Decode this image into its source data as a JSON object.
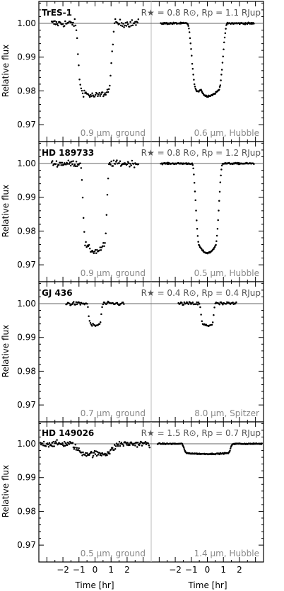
{
  "x_axis_label": "Time [hr]",
  "y_axis_label": "Relative flux",
  "x_tick_labels": [
    "−2",
    "−1",
    "0",
    "1",
    "2"
  ],
  "y_tick_labels": [
    "1.00",
    "0.99",
    "0.98",
    "0.97"
  ],
  "colors": {
    "points": "#000000",
    "baseline": "#666666",
    "divider": "#bbbbbb",
    "caption": "#888888"
  },
  "chart_data": [
    {
      "type": "scatter",
      "planet": "TrES-1",
      "params": "R★ = 0.8 R⊙, Rp = 1.1 RJup",
      "xlim": [
        -3.5,
        3.5
      ],
      "ylim": [
        0.965,
        1.0065
      ],
      "left": {
        "caption": "0.9 μm, ground",
        "depth": 0.0215,
        "t14": 2.5,
        "t12": 0.4,
        "noise": 0.0011,
        "xrange": [
          -2.7,
          2.7
        ],
        "n": 110
      },
      "right": {
        "caption": "0.6 μm, Hubble",
        "depth": 0.0215,
        "t14": 2.5,
        "t12": 0.55,
        "noise": 0.00025,
        "xrange": [
          -2.9,
          2.9
        ],
        "n": 170,
        "spot": {
          "t": -0.4,
          "amp": 0.0012,
          "w": 0.1
        }
      }
    },
    {
      "type": "scatter",
      "planet": "HD 189733",
      "params": "R★ = 0.8 R⊙, Rp = 1.2 RJup",
      "xlim": [
        -3.5,
        3.5
      ],
      "ylim": [
        0.965,
        1.0065
      ],
      "left": {
        "caption": "0.9 μm, ground",
        "depth": 0.026,
        "t14": 1.8,
        "t12": 0.3,
        "noise": 0.0009,
        "xrange": [
          -2.7,
          2.7
        ],
        "n": 110
      },
      "right": {
        "caption": "0.5 μm, Hubble",
        "depth": 0.0265,
        "t14": 1.9,
        "t12": 0.45,
        "noise": 0.0002,
        "xrange": [
          -2.9,
          2.9
        ],
        "n": 170
      }
    },
    {
      "type": "scatter",
      "planet": "GJ 436",
      "params": "R★ = 0.4 R⊙, Rp = 0.4 RJup",
      "xlim": [
        -3.5,
        3.5
      ],
      "ylim": [
        0.965,
        1.0065
      ],
      "left": {
        "caption": "0.7 μm, ground",
        "depth": 0.0065,
        "t14": 1.0,
        "t12": 0.2,
        "noise": 0.0005,
        "xrange": [
          -1.8,
          1.8
        ],
        "n": 70
      },
      "right": {
        "caption": "8.0 μm, Spitzer",
        "depth": 0.0065,
        "t14": 1.0,
        "t12": 0.2,
        "noise": 0.0005,
        "xrange": [
          -1.8,
          1.8
        ],
        "n": 70
      }
    },
    {
      "type": "scatter",
      "planet": "HD 149026",
      "params": "R★ = 1.5 R⊙, Rp = 0.7 RJup",
      "xlim": [
        -3.5,
        3.5
      ],
      "ylim": [
        0.965,
        1.0065
      ],
      "left": {
        "caption": "0.5 μm, ground",
        "depth": 0.003,
        "t14": 3.2,
        "t12": 0.9,
        "noise": 0.0009,
        "xrange": [
          -3.4,
          3.4
        ],
        "n": 160
      },
      "right": {
        "caption": "1.4 μm, Hubble",
        "depth": 0.003,
        "t14": 3.2,
        "t12": 0.3,
        "noise": 0.00015,
        "xrange": [
          -3.1,
          3.4
        ],
        "n": 200
      }
    }
  ]
}
